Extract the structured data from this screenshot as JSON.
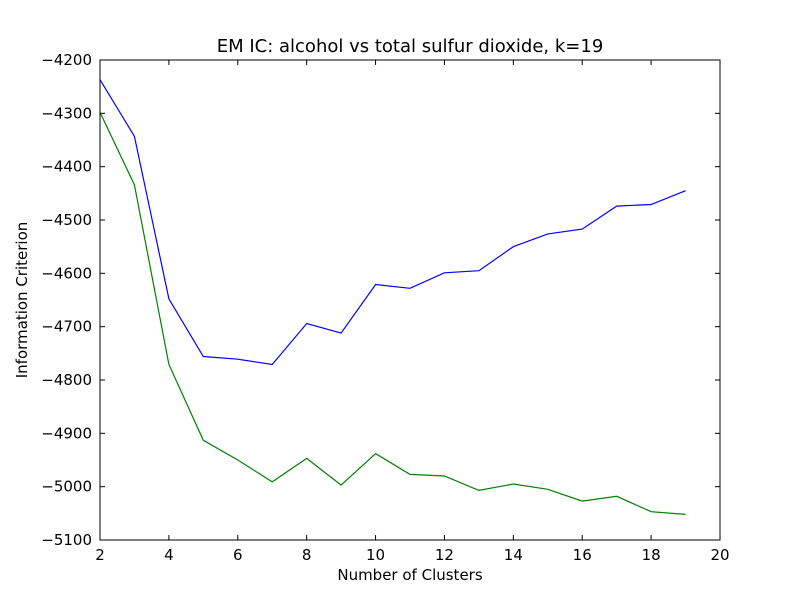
{
  "chart_data": {
    "type": "line",
    "title": "EM IC: alcohol vs total sulfur dioxide, k=19",
    "xlabel": "Number of Clusters",
    "ylabel": "Information Criterion",
    "xlim": [
      2,
      20
    ],
    "ylim": [
      -5100,
      -4200
    ],
    "xticks": [
      2,
      4,
      6,
      8,
      10,
      12,
      14,
      16,
      18,
      20
    ],
    "yticks": [
      -5100,
      -5000,
      -4900,
      -4800,
      -4700,
      -4600,
      -4500,
      -4400,
      -4300,
      -4200
    ],
    "grid": false,
    "x": [
      2,
      3,
      4,
      5,
      6,
      7,
      8,
      9,
      10,
      11,
      12,
      13,
      14,
      15,
      16,
      17,
      18,
      19
    ],
    "series": [
      {
        "color": "#0000ff",
        "values": [
          -4237,
          -4343,
          -4648,
          -4756,
          -4761,
          -4771,
          -4694,
          -4712,
          -4621,
          -4628,
          -4599,
          -4595,
          -4550,
          -4526,
          -4517,
          -4474,
          -4471,
          -4445
        ]
      },
      {
        "color": "#008000",
        "values": [
          -4298,
          -4434,
          -4771,
          -4913,
          -4950,
          -4991,
          -4947,
          -4997,
          -4938,
          -4977,
          -4980,
          -5007,
          -4995,
          -5005,
          -5027,
          -5018,
          -5047,
          -5052
        ]
      }
    ]
  }
}
